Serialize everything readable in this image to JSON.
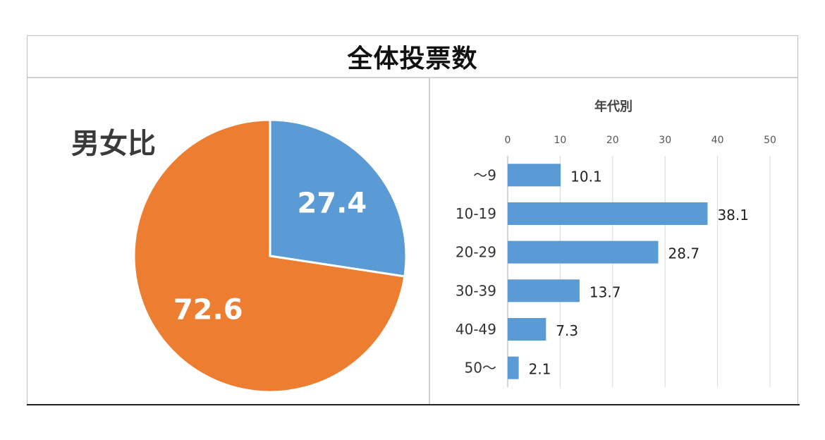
{
  "title": "全体投票数",
  "chart_data": [
    {
      "type": "pie",
      "title": "男女比",
      "slices": [
        {
          "label": "27.4",
          "value": 27.4,
          "color": "#5B9BD5"
        },
        {
          "label": "72.6",
          "value": 72.6,
          "color": "#ED7D31"
        }
      ]
    },
    {
      "type": "bar",
      "orientation": "horizontal",
      "title": "年代別",
      "categories": [
        "～9",
        "10-19",
        "20-29",
        "30-39",
        "40-49",
        "50～"
      ],
      "values": [
        10.1,
        38.1,
        28.7,
        13.7,
        7.3,
        2.1
      ],
      "value_labels": [
        "10.1",
        "38.1",
        "28.7",
        "13.7",
        "7.3",
        "2.1"
      ],
      "xlim": [
        0,
        50
      ],
      "xticks": [
        "0",
        "10",
        "20",
        "30",
        "40",
        "50"
      ],
      "grid": true,
      "axis_position": "top",
      "color": "#5B9BD5"
    }
  ]
}
